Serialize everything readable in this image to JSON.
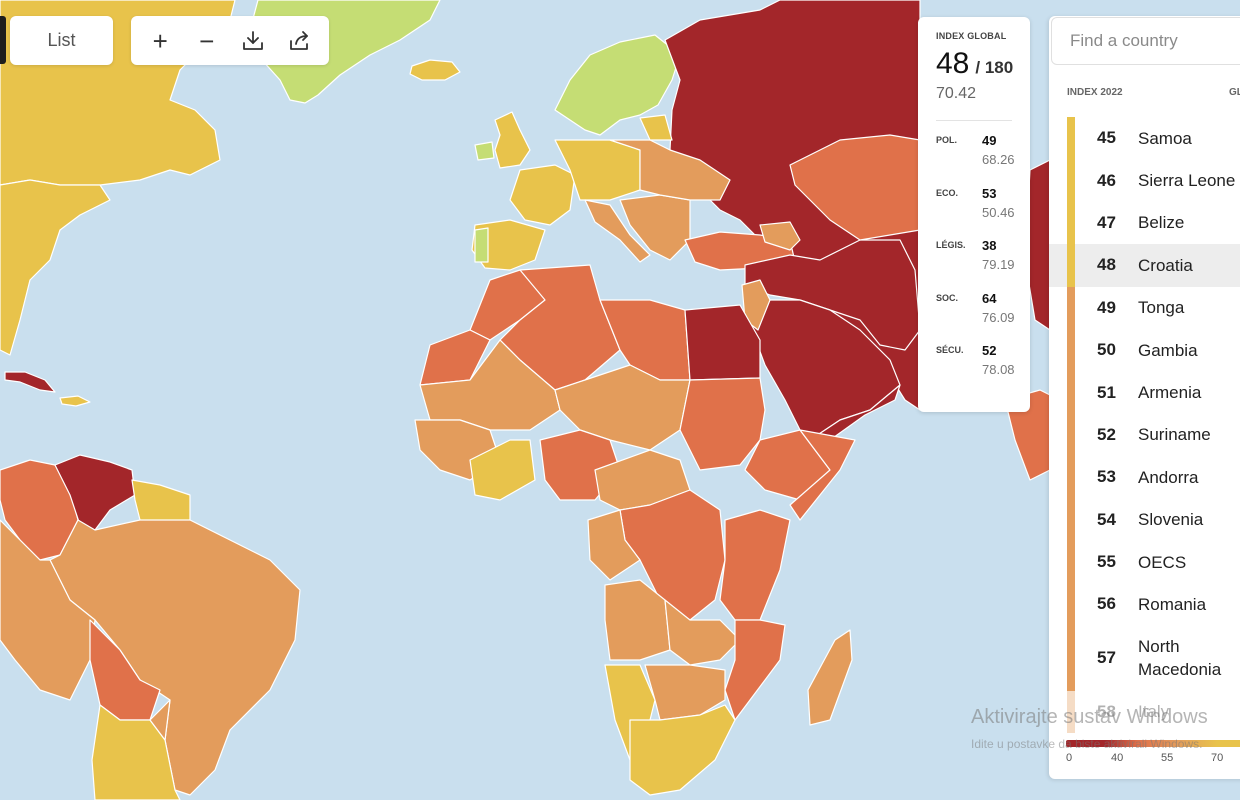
{
  "controls": {
    "list_label": "List",
    "tools": [
      {
        "name": "zoom-in-icon",
        "glyph": "+"
      },
      {
        "name": "zoom-out-icon",
        "glyph": "−"
      },
      {
        "name": "download-icon",
        "glyph": ""
      },
      {
        "name": "share-icon",
        "glyph": ""
      }
    ]
  },
  "country_card": {
    "global_label": "INDEX GLOBAL",
    "rank": "48",
    "total": "/ 180",
    "score": "70.42",
    "indicators": [
      {
        "key": "POL.",
        "rank": "49",
        "score": "68.26"
      },
      {
        "key": "ECO.",
        "rank": "53",
        "score": "50.46"
      },
      {
        "key": "LÉGIS.",
        "rank": "38",
        "score": "79.19"
      },
      {
        "key": "SOC.",
        "rank": "64",
        "score": "76.09"
      },
      {
        "key": "SÉCU.",
        "rank": "52",
        "score": "78.08"
      }
    ]
  },
  "panel": {
    "search_placeholder": "Find a country",
    "header_index": "INDEX 2022",
    "header_second": "GL",
    "rows": [
      {
        "rank": "45",
        "name": "Samoa",
        "color": "#e8c34b"
      },
      {
        "rank": "46",
        "name": "Sierra Leone",
        "color": "#e8c34b"
      },
      {
        "rank": "47",
        "name": "Belize",
        "color": "#e8c34b"
      },
      {
        "rank": "48",
        "name": "Croatia",
        "color": "#e8c34b",
        "selected": true
      },
      {
        "rank": "49",
        "name": "Tonga",
        "color": "#e39c5c"
      },
      {
        "rank": "50",
        "name": "Gambia",
        "color": "#e39c5c"
      },
      {
        "rank": "51",
        "name": "Armenia",
        "color": "#e39c5c"
      },
      {
        "rank": "52",
        "name": "Suriname",
        "color": "#e39c5c"
      },
      {
        "rank": "53",
        "name": "Andorra",
        "color": "#e39c5c"
      },
      {
        "rank": "54",
        "name": "Slovenia",
        "color": "#e39c5c"
      },
      {
        "rank": "55",
        "name": "OECS",
        "color": "#e39c5c"
      },
      {
        "rank": "56",
        "name": "Romania",
        "color": "#e39c5c"
      },
      {
        "rank": "57",
        "name": "North Macedonia",
        "color": "#e39c5c",
        "tall": true
      },
      {
        "rank": "58",
        "name": "Italy",
        "color": "#e39c5c",
        "faded": true
      }
    ]
  },
  "legend": {
    "ticks": [
      "0",
      "40",
      "55",
      "70"
    ]
  },
  "watermark": {
    "line1": "Aktivirajte sustav Windows",
    "line2": "Idite u postavke da biste aktivirali Windows."
  },
  "colors": {
    "very_serious": "#a3262a",
    "difficult": "#e0714a",
    "problematic": "#e39c5c",
    "satisfactory": "#e8c34b",
    "good": "#c5dd74",
    "ocean": "#c9dfee"
  }
}
